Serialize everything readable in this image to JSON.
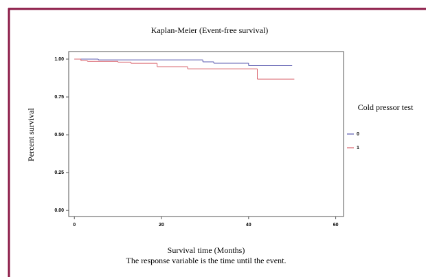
{
  "chart_data": {
    "type": "step",
    "title": "Kaplan-Meier (Event-free survival)",
    "x_label": "Survival time (Months)",
    "y_label": "Percent survival",
    "footnote": "The response variable is the time until the event.",
    "legend_title": "Cold pressor test",
    "legend_position": "right",
    "xlim": [
      -1.3,
      61.8
    ],
    "ylim": [
      -0.04,
      1.05
    ],
    "xticks": [
      0,
      20,
      40,
      60
    ],
    "yticks": [
      {
        "value": 0,
        "label": "0.00"
      },
      {
        "value": 0.25,
        "label": "0.25"
      },
      {
        "value": 0.5,
        "label": "0.50"
      },
      {
        "value": 0.75,
        "label": "0.75"
      },
      {
        "value": 1,
        "label": "1.00"
      }
    ],
    "series": [
      {
        "name": "0",
        "color": "#5b5bb0",
        "x": [
          0,
          5.5,
          29.5,
          32,
          40,
          50
        ],
        "values": [
          1,
          0.995,
          0.982,
          0.973,
          0.957,
          0.957
        ]
      },
      {
        "name": "1",
        "color": "#d9646e",
        "x": [
          0,
          1.5,
          3,
          10,
          13,
          19,
          26,
          42,
          50.5
        ],
        "values": [
          1,
          0.99,
          0.985,
          0.98,
          0.972,
          0.95,
          0.936,
          0.868,
          0.868
        ]
      }
    ]
  }
}
